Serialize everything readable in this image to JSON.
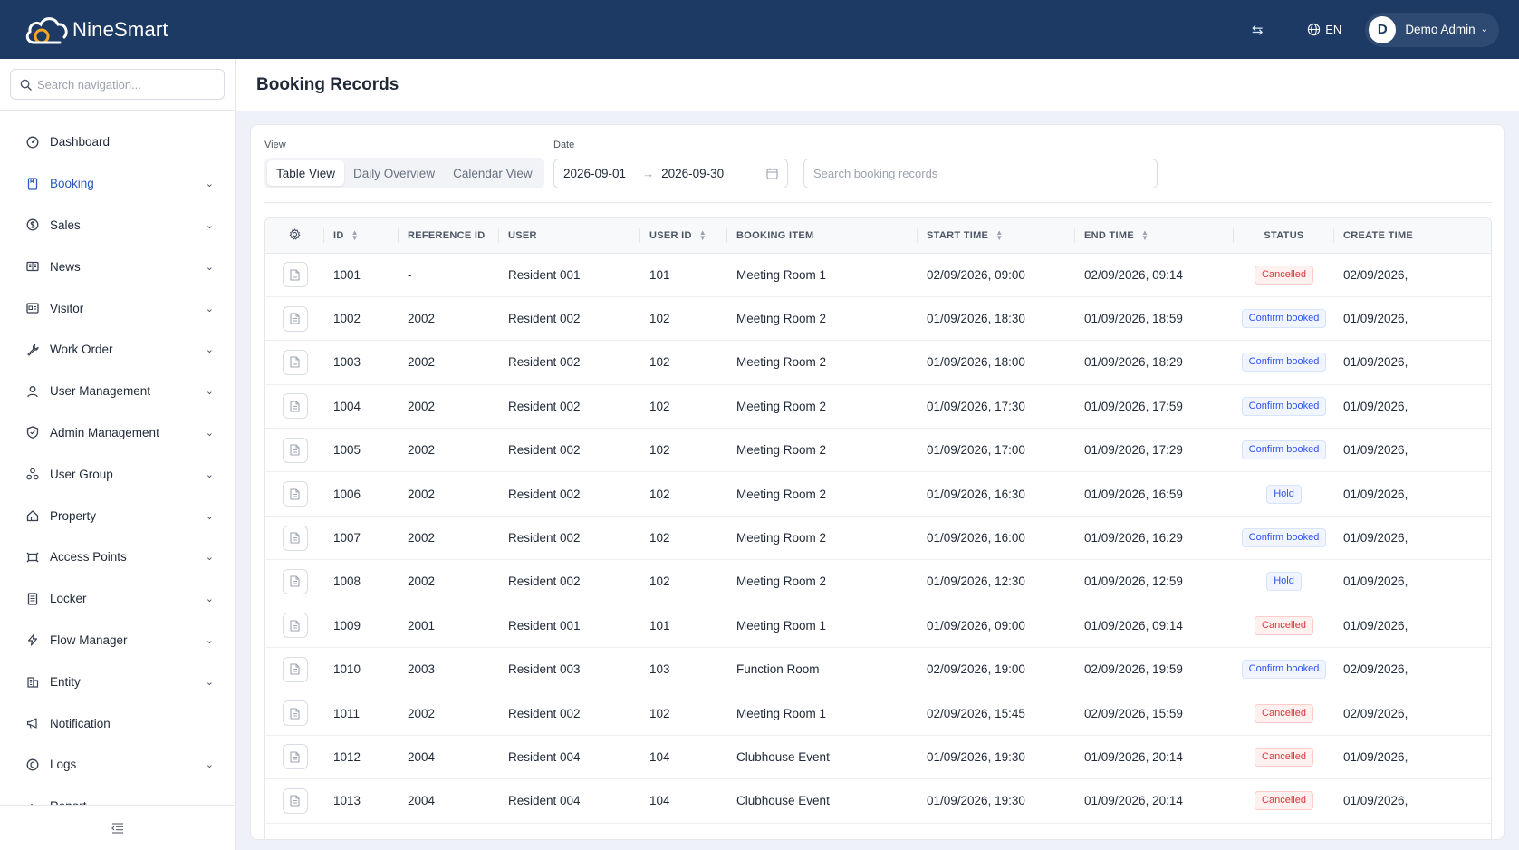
{
  "header": {
    "brand": "NineSmart",
    "language": "EN",
    "user_initial": "D",
    "user_name": "Demo Admin"
  },
  "sidebar": {
    "search_placeholder": "Search navigation...",
    "items": [
      {
        "label": "Dashboard",
        "icon": "dashboard-icon",
        "expandable": false,
        "active": false
      },
      {
        "label": "Booking",
        "icon": "booking-icon",
        "expandable": true,
        "active": true
      },
      {
        "label": "Sales",
        "icon": "dollar-icon",
        "expandable": true,
        "active": false
      },
      {
        "label": "News",
        "icon": "news-icon",
        "expandable": true,
        "active": false
      },
      {
        "label": "Visitor",
        "icon": "visitor-card-icon",
        "expandable": true,
        "active": false
      },
      {
        "label": "Work Order",
        "icon": "wrench-icon",
        "expandable": true,
        "active": false
      },
      {
        "label": "User Management",
        "icon": "user-icon",
        "expandable": true,
        "active": false
      },
      {
        "label": "Admin Management",
        "icon": "shield-icon",
        "expandable": true,
        "active": false
      },
      {
        "label": "User Group",
        "icon": "group-icon",
        "expandable": true,
        "active": false
      },
      {
        "label": "Property",
        "icon": "home-icon",
        "expandable": true,
        "active": false
      },
      {
        "label": "Access Points",
        "icon": "access-point-icon",
        "expandable": true,
        "active": false
      },
      {
        "label": "Locker",
        "icon": "locker-icon",
        "expandable": true,
        "active": false
      },
      {
        "label": "Flow Manager",
        "icon": "lightning-icon",
        "expandable": true,
        "active": false
      },
      {
        "label": "Entity",
        "icon": "building-icon",
        "expandable": true,
        "active": false
      },
      {
        "label": "Notification",
        "icon": "megaphone-icon",
        "expandable": false,
        "active": false
      },
      {
        "label": "Logs",
        "icon": "clock-icon",
        "expandable": true,
        "active": false
      },
      {
        "label": "Report",
        "icon": "chart-icon",
        "expandable": false,
        "active": false
      }
    ]
  },
  "page": {
    "title": "Booking Records",
    "view_label": "View",
    "views": [
      "Table View",
      "Daily Overview",
      "Calendar View"
    ],
    "active_view": "Table View",
    "date_label": "Date",
    "date_start": "2026-09-01",
    "date_end": "2026-09-30",
    "search_placeholder": "Search booking records"
  },
  "table": {
    "columns": [
      "ID",
      "REFERENCE ID",
      "USER",
      "USER ID",
      "BOOKING ITEM",
      "START TIME",
      "END TIME",
      "STATUS",
      "CREATE TIME"
    ],
    "rows": [
      {
        "id": "1001",
        "ref": "-",
        "user": "Resident 001",
        "user_id": "101",
        "item": "Meeting Room 1",
        "start": "02/09/2026, 09:00",
        "end": "02/09/2026, 09:14",
        "status": "Cancelled",
        "create": "02/09/2026,"
      },
      {
        "id": "1002",
        "ref": "2002",
        "user": "Resident 002",
        "user_id": "102",
        "item": "Meeting Room 2",
        "start": "01/09/2026, 18:30",
        "end": "01/09/2026, 18:59",
        "status": "Confirm booked",
        "create": "01/09/2026,"
      },
      {
        "id": "1003",
        "ref": "2002",
        "user": "Resident 002",
        "user_id": "102",
        "item": "Meeting Room 2",
        "start": "01/09/2026, 18:00",
        "end": "01/09/2026, 18:29",
        "status": "Confirm booked",
        "create": "01/09/2026,"
      },
      {
        "id": "1004",
        "ref": "2002",
        "user": "Resident 002",
        "user_id": "102",
        "item": "Meeting Room 2",
        "start": "01/09/2026, 17:30",
        "end": "01/09/2026, 17:59",
        "status": "Confirm booked",
        "create": "01/09/2026,"
      },
      {
        "id": "1005",
        "ref": "2002",
        "user": "Resident 002",
        "user_id": "102",
        "item": "Meeting Room 2",
        "start": "01/09/2026, 17:00",
        "end": "01/09/2026, 17:29",
        "status": "Confirm booked",
        "create": "01/09/2026,"
      },
      {
        "id": "1006",
        "ref": "2002",
        "user": "Resident 002",
        "user_id": "102",
        "item": "Meeting Room 2",
        "start": "01/09/2026, 16:30",
        "end": "01/09/2026, 16:59",
        "status": "Hold",
        "create": "01/09/2026,"
      },
      {
        "id": "1007",
        "ref": "2002",
        "user": "Resident 002",
        "user_id": "102",
        "item": "Meeting Room 2",
        "start": "01/09/2026, 16:00",
        "end": "01/09/2026, 16:29",
        "status": "Confirm booked",
        "create": "01/09/2026,"
      },
      {
        "id": "1008",
        "ref": "2002",
        "user": "Resident 002",
        "user_id": "102",
        "item": "Meeting Room 2",
        "start": "01/09/2026, 12:30",
        "end": "01/09/2026, 12:59",
        "status": "Hold",
        "create": "01/09/2026,"
      },
      {
        "id": "1009",
        "ref": "2001",
        "user": "Resident 001",
        "user_id": "101",
        "item": "Meeting Room 1",
        "start": "01/09/2026, 09:00",
        "end": "01/09/2026, 09:14",
        "status": "Cancelled",
        "create": "01/09/2026,"
      },
      {
        "id": "1010",
        "ref": "2003",
        "user": "Resident 003",
        "user_id": "103",
        "item": "Function Room",
        "start": "02/09/2026, 19:00",
        "end": "02/09/2026, 19:59",
        "status": "Confirm booked",
        "create": "02/09/2026,"
      },
      {
        "id": "1011",
        "ref": "2002",
        "user": "Resident 002",
        "user_id": "102",
        "item": "Meeting Room 1",
        "start": "02/09/2026, 15:45",
        "end": "02/09/2026, 15:59",
        "status": "Cancelled",
        "create": "02/09/2026,"
      },
      {
        "id": "1012",
        "ref": "2004",
        "user": "Resident 004",
        "user_id": "104",
        "item": "Clubhouse Event",
        "start": "01/09/2026, 19:30",
        "end": "01/09/2026, 20:14",
        "status": "Cancelled",
        "create": "01/09/2026,"
      },
      {
        "id": "1013",
        "ref": "2004",
        "user": "Resident 004",
        "user_id": "104",
        "item": "Clubhouse Event",
        "start": "01/09/2026, 19:30",
        "end": "01/09/2026, 20:14",
        "status": "Cancelled",
        "create": "01/09/2026,"
      }
    ]
  },
  "colors": {
    "header_bg": "#1c3a64",
    "accent": "#2b59c3",
    "cancelled": "#d9363e",
    "confirm": "#2f54eb"
  }
}
